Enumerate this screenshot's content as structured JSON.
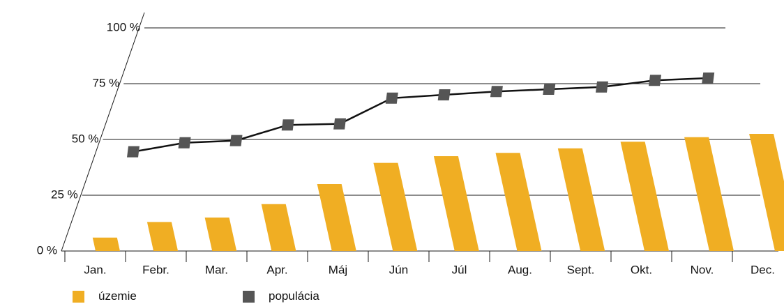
{
  "chart_data": {
    "type": "bar",
    "categories": [
      "Jan.",
      "Febr.",
      "Mar.",
      "Apr.",
      "Máj",
      "Jún",
      "Júl",
      "Aug.",
      "Sept.",
      "Okt.",
      "Nov.",
      "Dec."
    ],
    "ylim": [
      0,
      100
    ],
    "yticks": [
      "0 %",
      "25 %",
      "50 %",
      "75 %",
      "100 %"
    ],
    "grid": true,
    "legend_position": "bottom-left",
    "series": [
      {
        "name": "územie",
        "type": "bar",
        "color": "#f0ae23",
        "values": [
          6,
          13,
          15,
          21,
          30,
          39.5,
          42.5,
          44,
          46,
          49,
          51,
          52.5
        ]
      },
      {
        "name": "populácia",
        "type": "line",
        "color": "#555555",
        "line_color": "#111111",
        "values": [
          44.5,
          48.5,
          49.5,
          56.5,
          57,
          68.5,
          70,
          71.5,
          72.5,
          73.5,
          76.5,
          77.5
        ]
      }
    ]
  }
}
